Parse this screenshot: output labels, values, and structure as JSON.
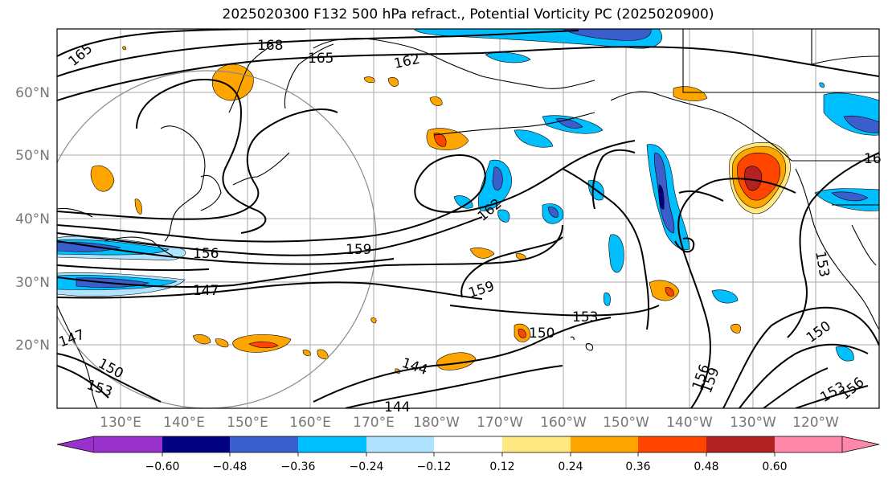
{
  "title": "2025020300 F132 500 hPa refract., Potential Vorticity PC (2025020900)",
  "lat_labels": [
    "60°N",
    "50°N",
    "40°N",
    "30°N",
    "20°N"
  ],
  "lon_labels": [
    "130°E",
    "140°E",
    "150°E",
    "160°E",
    "170°E",
    "180°W",
    "170°W",
    "160°W",
    "150°W",
    "140°W",
    "130°W",
    "120°W"
  ],
  "contour_labels": [
    "165",
    "168",
    "165",
    "162",
    "162",
    "159",
    "156",
    "147",
    "159",
    "153",
    "150",
    "144",
    "144",
    "156",
    "159",
    "153",
    "150",
    "153",
    "156",
    "147",
    "150",
    "153",
    "16"
  ],
  "colorbar": {
    "colors": [
      "#9932cc",
      "#000080",
      "#3a5fcd",
      "#00bfff",
      "#afe3ff",
      "#ffffff",
      "#ffe880",
      "#ffa500",
      "#ff4500",
      "#b22222",
      "#ff88aa"
    ],
    "ticks": [
      "−0.60",
      "−0.48",
      "−0.36",
      "−0.24",
      "−0.12",
      "0.12",
      "0.24",
      "0.36",
      "0.48",
      "0.60"
    ]
  },
  "colors": {
    "contour": "#000000",
    "grid": "#aaaaaa",
    "coast": "#000000",
    "circle": "#888888"
  }
}
